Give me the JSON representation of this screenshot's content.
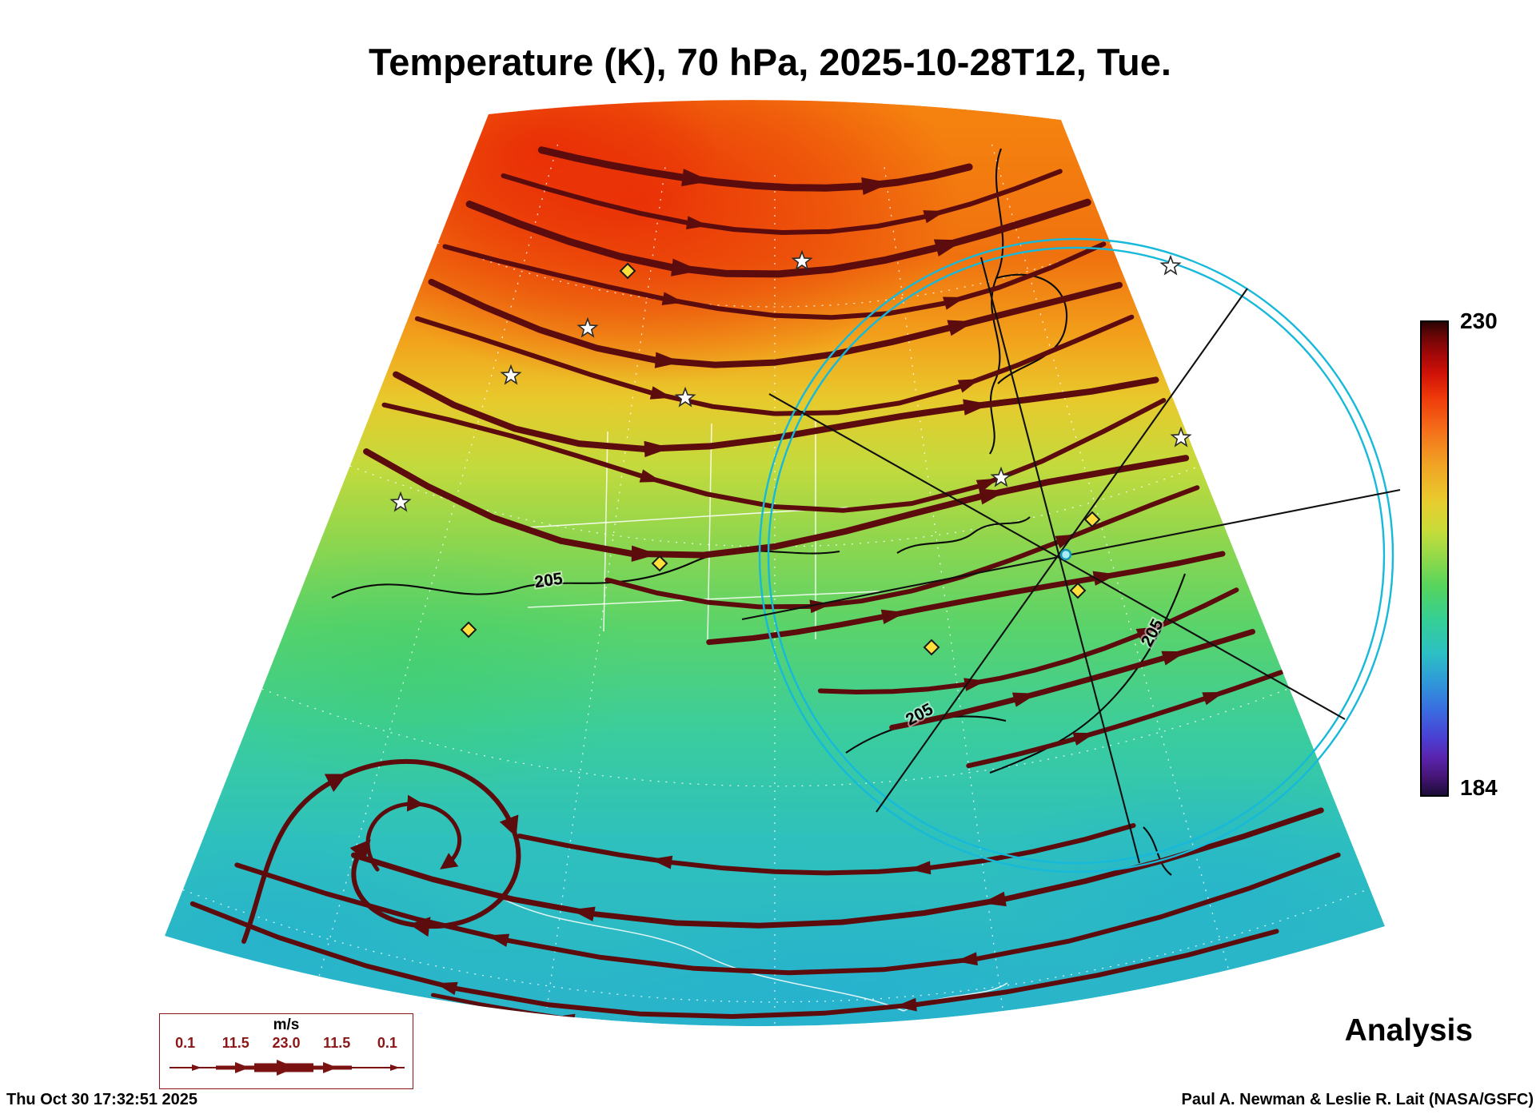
{
  "title": "Temperature (K), 70 hPa, 2025-10-28T12, Tue.",
  "map": {
    "parameter": "Temperature",
    "units": "K",
    "level": "70 hPa",
    "valid_time": "2025-10-28T12",
    "weekday": "Tue.",
    "mode": "Analysis",
    "colorbar_min": 184,
    "colorbar_max": 230,
    "contour_value": 205
  },
  "colorbar": {
    "max_label": "230",
    "min_label": "184"
  },
  "overlay": {
    "contour_labels": [
      "205",
      "205",
      "205"
    ],
    "streamline_color": "#5c0c0c",
    "range_ring_color": "#17b9da",
    "station_diamond_color": "#ffdf3c",
    "station_star_color": "#ffffff"
  },
  "wind_legend": {
    "units_label": "m/s",
    "speed_labels": [
      "0.1",
      "11.5",
      "23.0",
      "11.5",
      "0.1"
    ]
  },
  "annotations": {
    "analysis_label": "Analysis",
    "generated_timestamp": "Thu Oct 30 17:32:51 2025",
    "credit": "Paul A. Newman & Leslie R. Lait (NASA/GSFC)"
  }
}
